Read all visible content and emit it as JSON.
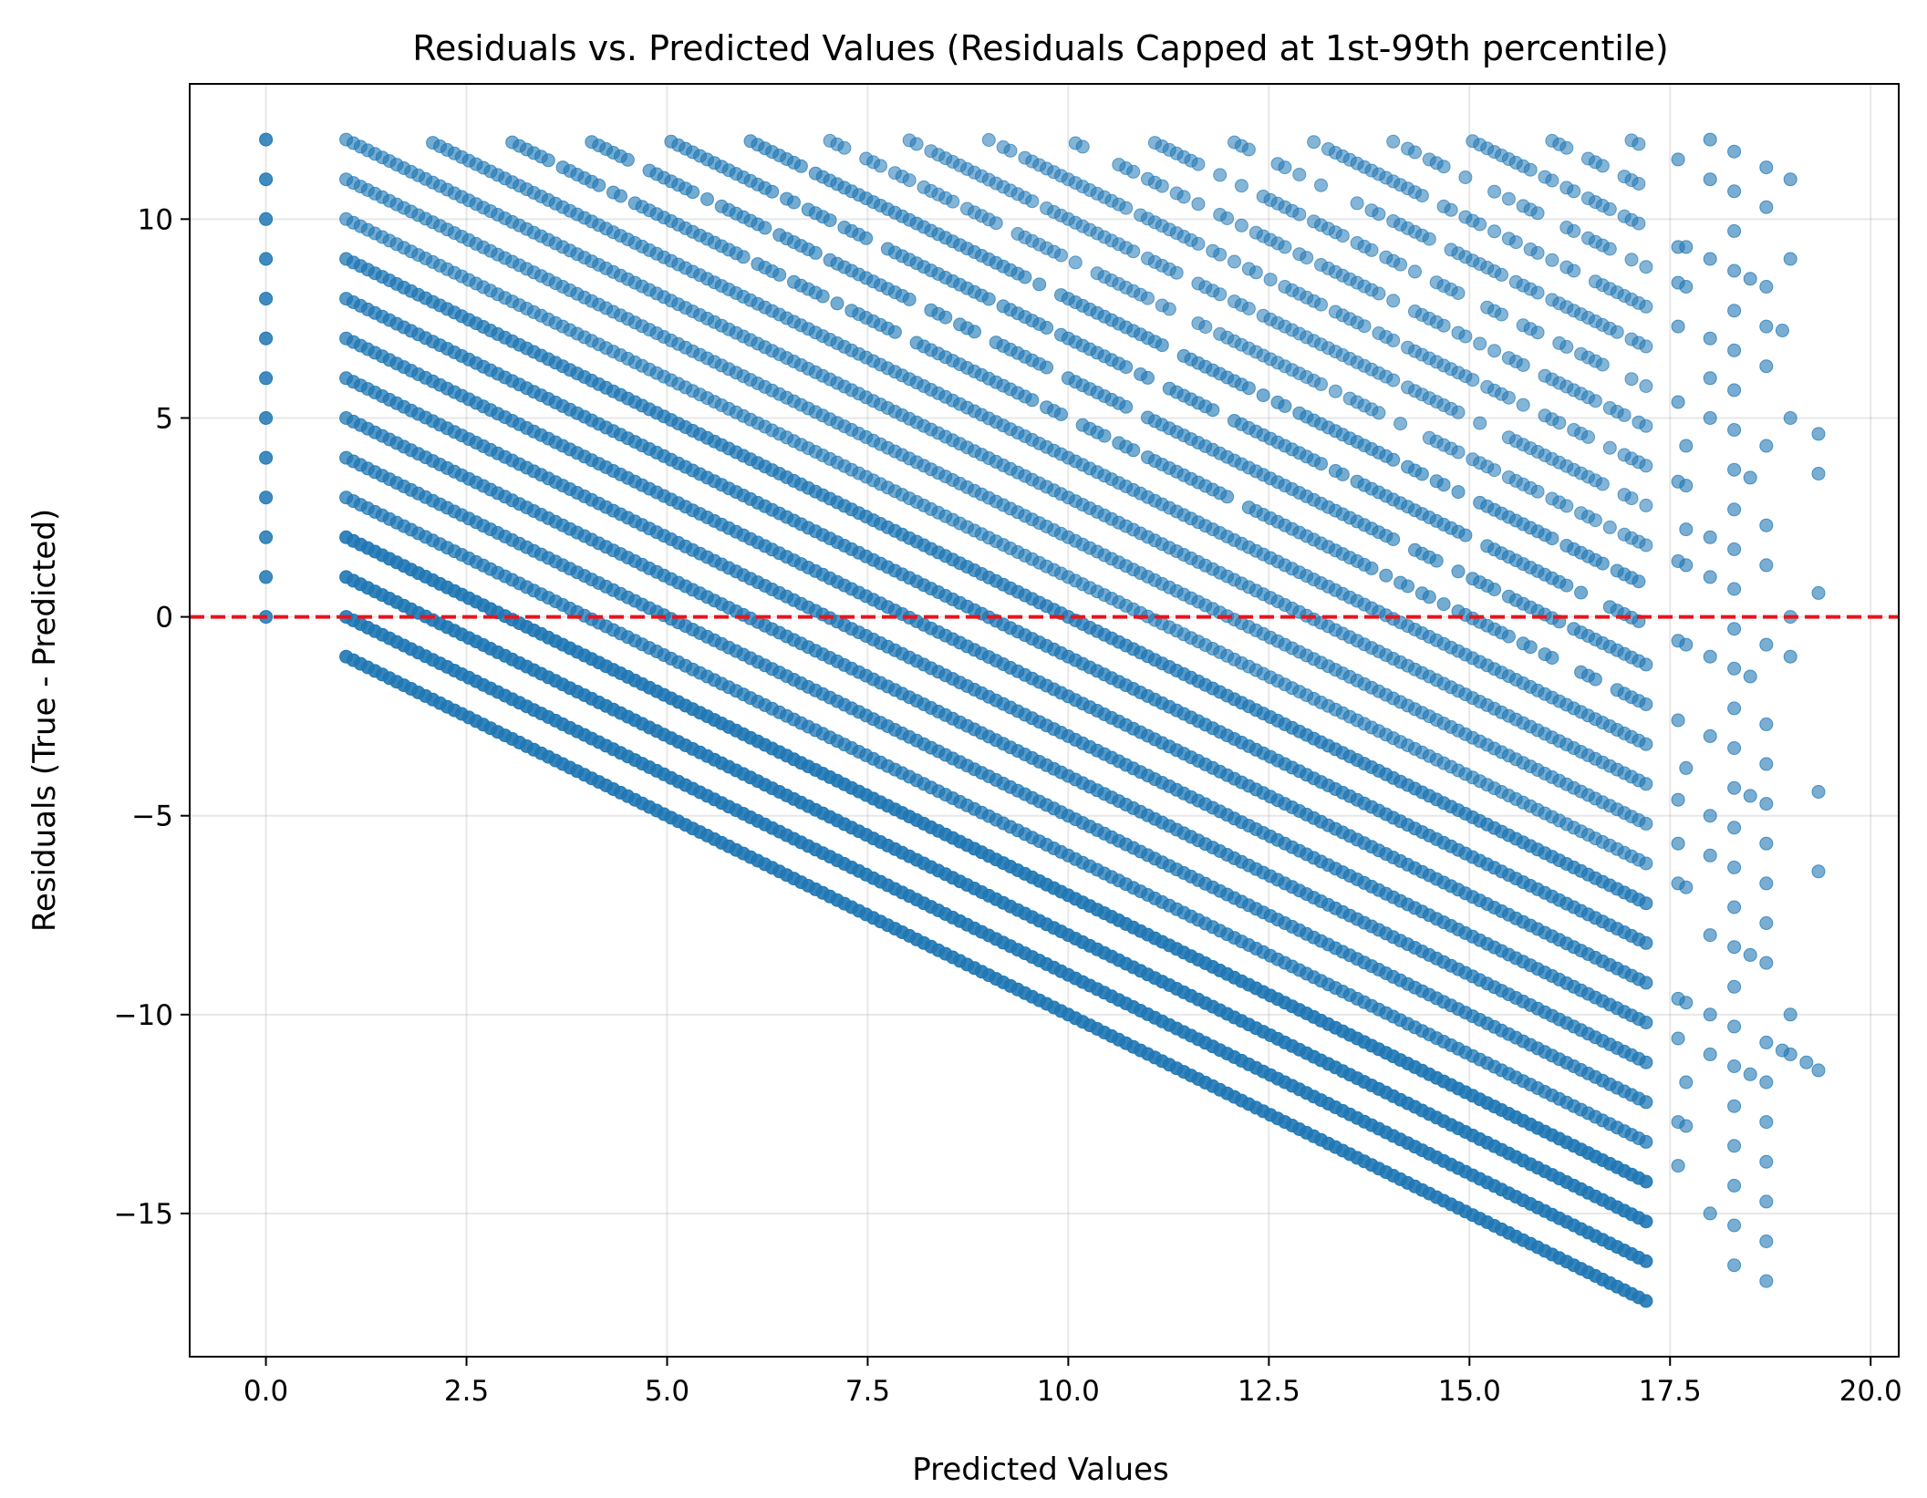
{
  "chart_data": {
    "type": "scatter",
    "title": "Residuals vs. Predicted Values (Residuals Capped at 1st-99th percentile)",
    "xlabel": "Predicted Values",
    "ylabel": "Residuals (True - Predicted)",
    "xlim": [
      -0.95,
      20.35
    ],
    "ylim": [
      -18.6,
      13.4
    ],
    "x_ticks": [
      {
        "value": 0.0,
        "label": "0.0"
      },
      {
        "value": 2.5,
        "label": "2.5"
      },
      {
        "value": 5.0,
        "label": "5.0"
      },
      {
        "value": 7.5,
        "label": "7.5"
      },
      {
        "value": 10.0,
        "label": "10.0"
      },
      {
        "value": 12.5,
        "label": "12.5"
      },
      {
        "value": 15.0,
        "label": "15.0"
      },
      {
        "value": 17.5,
        "label": "17.5"
      },
      {
        "value": 20.0,
        "label": "20.0"
      }
    ],
    "y_ticks": [
      {
        "value": 10,
        "label": "10"
      },
      {
        "value": 5,
        "label": "5"
      },
      {
        "value": 0,
        "label": "0"
      },
      {
        "value": -5,
        "label": "−5"
      },
      {
        "value": -10,
        "label": "−10"
      },
      {
        "value": -15,
        "label": "−15"
      }
    ],
    "grid": true,
    "reference_line": {
      "y": 0,
      "style": "dashed",
      "color": "#e8141c"
    },
    "point_color": "#1f77b4",
    "series": [
      {
        "description": "Diagonal bands: residual = true_value - predicted, true values 0..29, predicted 1.0..17.2",
        "x_range": [
          1.0,
          17.2
        ],
        "true_values_min": 0,
        "true_values_max": 29,
        "residual_cap": [
          -17.2,
          12.0
        ]
      },
      {
        "description": "Column at predicted = 0",
        "x": 0.0,
        "y_values": [
          0,
          1,
          2,
          3,
          4,
          5,
          6,
          7,
          8,
          9,
          10,
          11,
          12
        ]
      }
    ],
    "sparse_points": [
      [
        17.6,
        11.5
      ],
      [
        17.6,
        9.3
      ],
      [
        17.6,
        8.4
      ],
      [
        17.6,
        7.3
      ],
      [
        17.6,
        5.4
      ],
      [
        17.6,
        3.4
      ],
      [
        17.6,
        1.4
      ],
      [
        17.6,
        -0.6
      ],
      [
        17.6,
        -2.6
      ],
      [
        17.6,
        -4.6
      ],
      [
        17.6,
        -5.7
      ],
      [
        17.6,
        -6.7
      ],
      [
        17.6,
        -9.6
      ],
      [
        17.6,
        -10.6
      ],
      [
        17.6,
        -12.7
      ],
      [
        17.6,
        -13.8
      ],
      [
        17.7,
        9.3
      ],
      [
        17.7,
        8.3
      ],
      [
        17.7,
        4.3
      ],
      [
        17.7,
        3.3
      ],
      [
        17.7,
        2.2
      ],
      [
        17.7,
        1.3
      ],
      [
        17.7,
        -0.7
      ],
      [
        17.7,
        -3.8
      ],
      [
        17.7,
        -6.8
      ],
      [
        17.7,
        -9.7
      ],
      [
        17.7,
        -11.7
      ],
      [
        17.7,
        -12.8
      ],
      [
        18.0,
        12.0
      ],
      [
        18.0,
        11.0
      ],
      [
        18.0,
        9.0
      ],
      [
        18.0,
        7.0
      ],
      [
        18.0,
        6.0
      ],
      [
        18.0,
        5.0
      ],
      [
        18.0,
        2.0
      ],
      [
        18.0,
        1.0
      ],
      [
        18.0,
        -1.0
      ],
      [
        18.0,
        -3.0
      ],
      [
        18.0,
        -5.0
      ],
      [
        18.0,
        -6.0
      ],
      [
        18.0,
        -8.0
      ],
      [
        18.0,
        -10.0
      ],
      [
        18.0,
        -11.0
      ],
      [
        18.0,
        -15.0
      ],
      [
        18.3,
        11.7
      ],
      [
        18.3,
        10.7
      ],
      [
        18.3,
        9.7
      ],
      [
        18.3,
        8.7
      ],
      [
        18.3,
        7.7
      ],
      [
        18.3,
        6.7
      ],
      [
        18.3,
        5.7
      ],
      [
        18.3,
        4.7
      ],
      [
        18.3,
        3.7
      ],
      [
        18.3,
        2.7
      ],
      [
        18.3,
        1.7
      ],
      [
        18.3,
        0.7
      ],
      [
        18.3,
        -0.3
      ],
      [
        18.3,
        -1.3
      ],
      [
        18.3,
        -2.3
      ],
      [
        18.3,
        -3.3
      ],
      [
        18.3,
        -4.3
      ],
      [
        18.3,
        -5.3
      ],
      [
        18.3,
        -6.3
      ],
      [
        18.3,
        -7.3
      ],
      [
        18.3,
        -8.3
      ],
      [
        18.3,
        -9.3
      ],
      [
        18.3,
        -10.3
      ],
      [
        18.3,
        -11.3
      ],
      [
        18.3,
        -12.3
      ],
      [
        18.3,
        -13.3
      ],
      [
        18.3,
        -14.3
      ],
      [
        18.3,
        -15.3
      ],
      [
        18.3,
        -16.3
      ],
      [
        18.5,
        8.5
      ],
      [
        18.5,
        3.5
      ],
      [
        18.5,
        -1.5
      ],
      [
        18.5,
        -4.5
      ],
      [
        18.5,
        -8.5
      ],
      [
        18.5,
        -11.5
      ],
      [
        18.7,
        11.3
      ],
      [
        18.7,
        10.3
      ],
      [
        18.7,
        8.3
      ],
      [
        18.7,
        7.3
      ],
      [
        18.7,
        6.3
      ],
      [
        18.7,
        4.3
      ],
      [
        18.7,
        2.3
      ],
      [
        18.7,
        1.3
      ],
      [
        18.7,
        -0.7
      ],
      [
        18.7,
        -2.7
      ],
      [
        18.7,
        -3.7
      ],
      [
        18.7,
        -4.7
      ],
      [
        18.7,
        -5.7
      ],
      [
        18.7,
        -6.7
      ],
      [
        18.7,
        -7.7
      ],
      [
        18.7,
        -8.7
      ],
      [
        18.7,
        -10.7
      ],
      [
        18.7,
        -11.7
      ],
      [
        18.7,
        -12.7
      ],
      [
        18.7,
        -13.7
      ],
      [
        18.7,
        -14.7
      ],
      [
        18.7,
        -15.7
      ],
      [
        18.7,
        -16.7
      ],
      [
        18.9,
        7.2
      ],
      [
        18.9,
        -10.9
      ],
      [
        19.0,
        11.0
      ],
      [
        19.0,
        9.0
      ],
      [
        19.0,
        5.0
      ],
      [
        19.0,
        0.0
      ],
      [
        19.0,
        -1.0
      ],
      [
        19.0,
        -10.0
      ],
      [
        19.0,
        -11.0
      ],
      [
        19.2,
        -11.2
      ],
      [
        19.35,
        4.6
      ],
      [
        19.35,
        3.6
      ],
      [
        19.35,
        0.6
      ],
      [
        19.35,
        -4.4
      ],
      [
        19.35,
        -6.4
      ],
      [
        19.35,
        -11.4
      ]
    ]
  }
}
